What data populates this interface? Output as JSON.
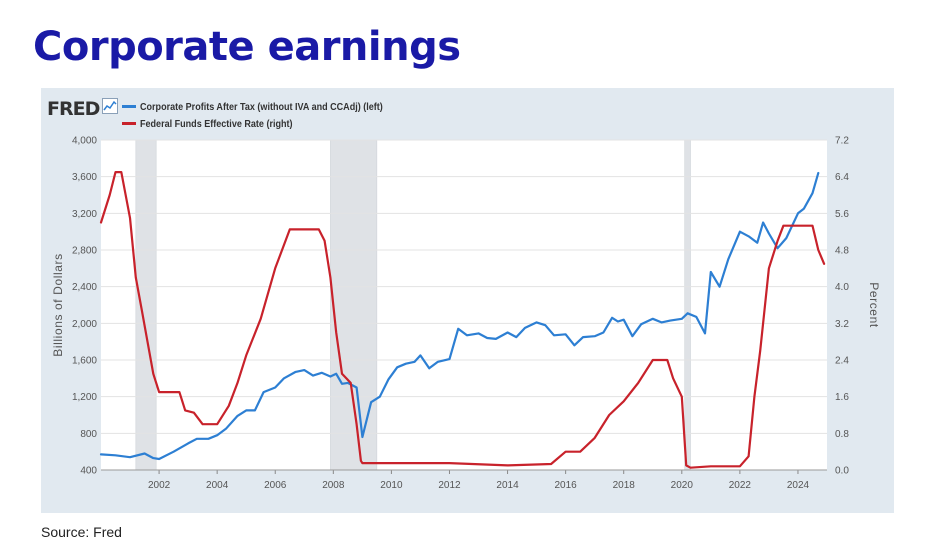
{
  "slide": {
    "title": "Corporate earnings",
    "source": "Source: Fred"
  },
  "fred": {
    "logo": "FRED"
  },
  "colors": {
    "title": "#1a1aa6",
    "panel": "#e1e9f0",
    "plot": "#ffffff",
    "recession": "#dfe2e6"
  },
  "chart_data": {
    "type": "line",
    "title": "",
    "xlabel": "",
    "ylabel": "Billions of Dollars",
    "y2label": "Percent",
    "xlim": [
      2000.0,
      2025.0
    ],
    "ylim": [
      400,
      4000
    ],
    "y2lim": [
      0.0,
      7.2
    ],
    "grid": true,
    "legend_position": "top-left",
    "xticks": [
      2002,
      2004,
      2006,
      2008,
      2010,
      2012,
      2014,
      2016,
      2018,
      2020,
      2022,
      2024
    ],
    "xtick_labels": [
      "2002",
      "2004",
      "2006",
      "2008",
      "2010",
      "2012",
      "2014",
      "2016",
      "2018",
      "2020",
      "2022",
      "2024"
    ],
    "yticks": [
      400,
      800,
      1200,
      1600,
      2000,
      2400,
      2800,
      3200,
      3600,
      4000
    ],
    "ytick_labels": [
      "400",
      "800",
      "1,200",
      "1,600",
      "2,000",
      "2,400",
      "2,800",
      "3,200",
      "3,600",
      "4,000"
    ],
    "y2ticks": [
      0.0,
      0.8,
      1.6,
      2.4,
      3.2,
      4.0,
      4.8,
      5.6,
      6.4,
      7.2
    ],
    "y2tick_labels": [
      "0.0",
      "0.8",
      "1.6",
      "2.4",
      "3.2",
      "4.0",
      "4.8",
      "5.6",
      "6.4",
      "7.2"
    ],
    "recessions": [
      [
        2001.2,
        2001.9
      ],
      [
        2007.9,
        2009.5
      ],
      [
        2020.1,
        2020.3
      ]
    ],
    "series": [
      {
        "name": "Corporate Profits After Tax (without IVA and CCAdj) (left)",
        "axis": "left",
        "color": "#2d7fd3",
        "x": [
          2000.0,
          2000.5,
          2001.0,
          2001.5,
          2001.8,
          2002.0,
          2002.5,
          2003.0,
          2003.3,
          2003.7,
          2004.0,
          2004.3,
          2004.7,
          2005.0,
          2005.3,
          2005.6,
          2006.0,
          2006.3,
          2006.7,
          2007.0,
          2007.3,
          2007.6,
          2007.9,
          2008.1,
          2008.3,
          2008.5,
          2008.8,
          2009.0,
          2009.3,
          2009.6,
          2009.9,
          2010.2,
          2010.5,
          2010.8,
          2011.0,
          2011.3,
          2011.6,
          2012.0,
          2012.3,
          2012.6,
          2013.0,
          2013.3,
          2013.6,
          2014.0,
          2014.3,
          2014.6,
          2015.0,
          2015.3,
          2015.6,
          2016.0,
          2016.3,
          2016.6,
          2017.0,
          2017.3,
          2017.6,
          2017.8,
          2018.0,
          2018.3,
          2018.6,
          2019.0,
          2019.3,
          2019.6,
          2020.0,
          2020.2,
          2020.5,
          2020.8,
          2021.0,
          2021.3,
          2021.6,
          2022.0,
          2022.3,
          2022.6,
          2022.8,
          2023.0,
          2023.3,
          2023.6,
          2024.0,
          2024.2,
          2024.5,
          2024.7
        ],
        "values": [
          570,
          560,
          540,
          580,
          530,
          520,
          600,
          690,
          740,
          740,
          780,
          850,
          990,
          1050,
          1050,
          1250,
          1300,
          1400,
          1470,
          1490,
          1430,
          1460,
          1420,
          1450,
          1340,
          1350,
          1300,
          760,
          1140,
          1200,
          1390,
          1520,
          1560,
          1580,
          1650,
          1510,
          1580,
          1610,
          1940,
          1870,
          1890,
          1840,
          1830,
          1900,
          1850,
          1950,
          2010,
          1980,
          1870,
          1880,
          1760,
          1850,
          1860,
          1900,
          2060,
          2020,
          2040,
          1860,
          1990,
          2050,
          2010,
          2030,
          2050,
          2110,
          2070,
          1890,
          2560,
          2400,
          2700,
          3000,
          2950,
          2880,
          3100,
          2980,
          2820,
          2930,
          3200,
          3250,
          3420,
          3640
        ]
      },
      {
        "name": "Federal Funds Effective Rate (right)",
        "axis": "right",
        "color": "#c8222b",
        "x": [
          2000.0,
          2000.3,
          2000.5,
          2000.7,
          2001.0,
          2001.2,
          2001.4,
          2001.6,
          2001.8,
          2002.0,
          2002.3,
          2002.7,
          2002.9,
          2003.2,
          2003.5,
          2003.6,
          2004.0,
          2004.4,
          2004.7,
          2005.0,
          2005.5,
          2006.0,
          2006.5,
          2007.0,
          2007.5,
          2007.7,
          2007.9,
          2008.1,
          2008.3,
          2008.6,
          2008.8,
          2008.95,
          2009.0,
          2010.0,
          2012.0,
          2014.0,
          2015.5,
          2016.0,
          2016.5,
          2017.0,
          2017.5,
          2018.0,
          2018.5,
          2019.0,
          2019.5,
          2019.7,
          2020.0,
          2020.15,
          2020.3,
          2021.0,
          2022.0,
          2022.3,
          2022.5,
          2022.7,
          2023.0,
          2023.3,
          2023.5,
          2024.0,
          2024.5,
          2024.7,
          2024.9
        ],
        "values": [
          5.4,
          6.0,
          6.5,
          6.5,
          5.5,
          4.2,
          3.5,
          2.8,
          2.1,
          1.7,
          1.7,
          1.7,
          1.3,
          1.25,
          1.0,
          1.0,
          1.0,
          1.4,
          1.9,
          2.5,
          3.3,
          4.4,
          5.25,
          5.25,
          5.25,
          5.0,
          4.2,
          3.0,
          2.1,
          1.9,
          1.0,
          0.2,
          0.15,
          0.15,
          0.15,
          0.1,
          0.13,
          0.4,
          0.4,
          0.7,
          1.2,
          1.5,
          1.9,
          2.4,
          2.4,
          2.0,
          1.6,
          0.1,
          0.05,
          0.08,
          0.08,
          0.3,
          1.6,
          2.6,
          4.4,
          5.0,
          5.33,
          5.33,
          5.33,
          4.8,
          4.5
        ]
      }
    ]
  }
}
